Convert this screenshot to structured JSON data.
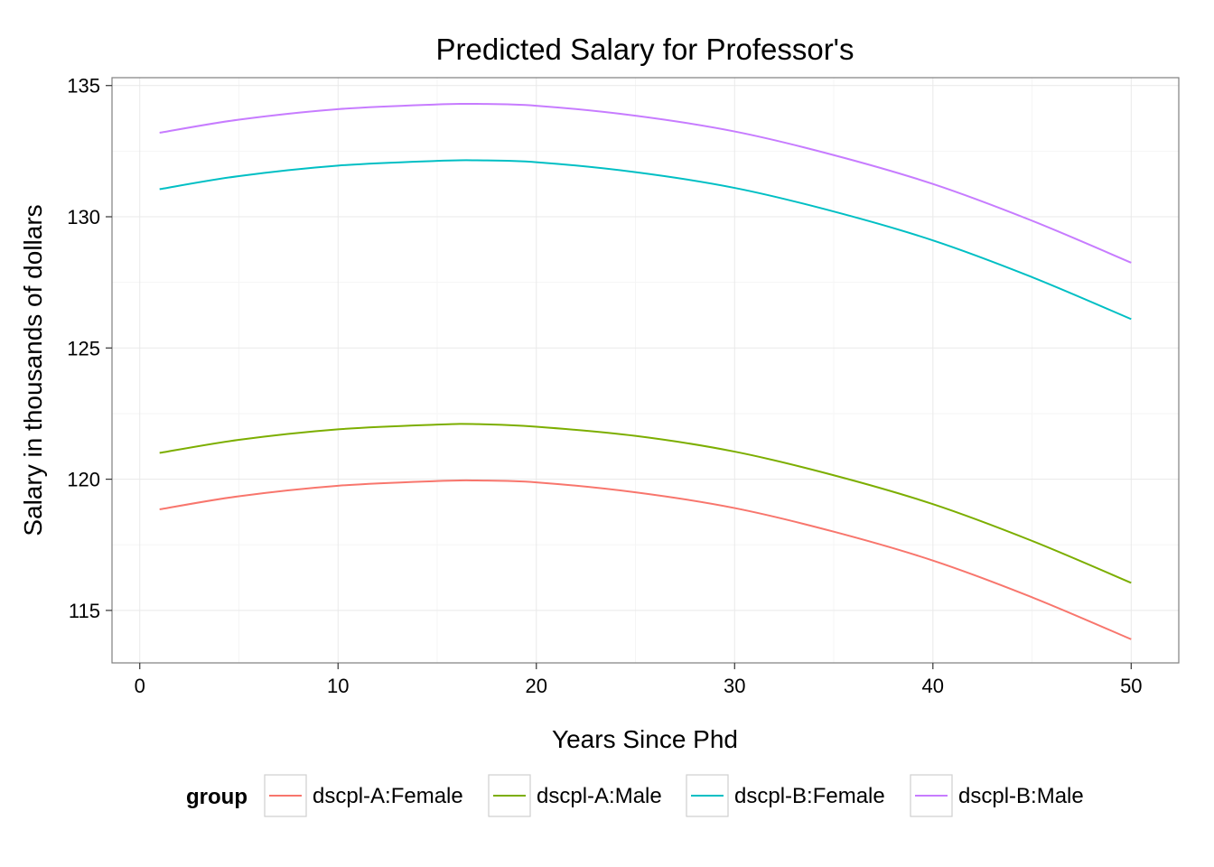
{
  "chart_data": {
    "type": "line",
    "title": "Predicted Salary for Professor's",
    "xlabel": "Years Since Phd",
    "ylabel": "Salary in thousands of dollars",
    "xlim": [
      -1.4,
      52.4
    ],
    "ylim": [
      113.0,
      135.3
    ],
    "xticks": [
      0,
      10,
      20,
      30,
      40,
      50
    ],
    "yticks": [
      115,
      120,
      125,
      130,
      135
    ],
    "grid": true,
    "legend": {
      "title": "group",
      "position": "bottom",
      "items": [
        "dscpl-A:Female",
        "dscpl-A:Male",
        "dscpl-B:Female",
        "dscpl-B:Male"
      ]
    },
    "x": [
      1,
      5,
      10,
      15,
      17,
      20,
      25,
      30,
      35,
      40,
      45,
      50
    ],
    "series": [
      {
        "name": "dscpl-A:Female",
        "color": "#F8766D",
        "values": [
          118.85,
          119.35,
          119.75,
          119.93,
          119.95,
          119.88,
          119.5,
          118.9,
          118.0,
          116.9,
          115.5,
          113.9
        ]
      },
      {
        "name": "dscpl-A:Male",
        "color": "#7CAE00",
        "values": [
          121.0,
          121.5,
          121.9,
          122.08,
          122.1,
          122.0,
          121.65,
          121.05,
          120.15,
          119.05,
          117.65,
          116.05
        ]
      },
      {
        "name": "dscpl-B:Female",
        "color": "#00BFC4",
        "values": [
          131.05,
          131.55,
          131.95,
          132.13,
          132.15,
          132.08,
          131.7,
          131.1,
          130.2,
          129.1,
          127.7,
          126.1
        ]
      },
      {
        "name": "dscpl-B:Male",
        "color": "#C77CFF",
        "values": [
          133.2,
          133.7,
          134.1,
          134.28,
          134.3,
          134.23,
          133.85,
          133.25,
          132.35,
          131.25,
          129.85,
          128.25
        ]
      }
    ]
  }
}
